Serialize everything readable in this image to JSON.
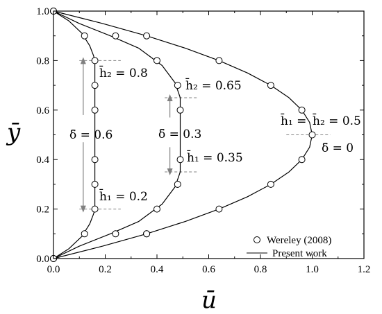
{
  "chart_data": {
    "type": "line",
    "xlabel": "ū",
    "ylabel": "ȳ",
    "xlim": [
      0.0,
      1.2
    ],
    "ylim": [
      0.0,
      1.0
    ],
    "x_ticks": [
      "0.0",
      "0.2",
      "0.4",
      "0.6",
      "0.8",
      "1.0",
      "1.2"
    ],
    "y_ticks": [
      "0.0",
      "0.2",
      "0.4",
      "0.6",
      "0.8",
      "1.0"
    ],
    "grid": false,
    "legend_position": "bottom-right",
    "legend": {
      "markers_label": "Wereley (2008)",
      "line_label": "Present work"
    },
    "series": [
      {
        "h1": 0.2,
        "h2": 0.8,
        "delta": 0.6,
        "line_x": [
          0.0,
          0.06,
          0.11,
          0.14,
          0.155,
          0.16,
          0.16,
          0.155,
          0.14,
          0.11,
          0.06,
          0.0
        ],
        "line_y": [
          0.0,
          0.04,
          0.09,
          0.14,
          0.18,
          0.2,
          0.8,
          0.82,
          0.86,
          0.91,
          0.96,
          1.0
        ],
        "markers_x": [
          0.0,
          0.12,
          0.16,
          0.16,
          0.16,
          0.16,
          0.16,
          0.16,
          0.12,
          0.0
        ],
        "markers_y": [
          0.0,
          0.1,
          0.2,
          0.3,
          0.4,
          0.6,
          0.7,
          0.8,
          0.9,
          1.0
        ]
      },
      {
        "h1": 0.35,
        "h2": 0.65,
        "delta": 0.3,
        "line_x": [
          0.0,
          0.1,
          0.22,
          0.33,
          0.42,
          0.47,
          0.49,
          0.49,
          0.47,
          0.42,
          0.33,
          0.22,
          0.1,
          0.0
        ],
        "line_y": [
          0.0,
          0.05,
          0.1,
          0.15,
          0.22,
          0.29,
          0.35,
          0.65,
          0.71,
          0.78,
          0.85,
          0.9,
          0.95,
          1.0
        ],
        "markers_x": [
          0.0,
          0.24,
          0.36,
          0.4,
          0.48,
          0.49,
          0.49,
          0.48,
          0.4,
          0.24,
          0.0
        ],
        "markers_y": [
          0.0,
          0.1,
          0.1,
          0.2,
          0.3,
          0.4,
          0.6,
          0.7,
          0.8,
          0.9,
          1.0
        ]
      },
      {
        "h1": 0.5,
        "h2": 0.5,
        "delta": 0,
        "line_x": [
          0.0,
          0.19,
          0.36,
          0.51,
          0.64,
          0.75,
          0.84,
          0.91,
          0.96,
          0.99,
          1.0,
          0.99,
          0.96,
          0.91,
          0.84,
          0.75,
          0.64,
          0.51,
          0.36,
          0.19,
          0.0
        ],
        "line_y": [
          0.0,
          0.05,
          0.1,
          0.15,
          0.2,
          0.25,
          0.3,
          0.35,
          0.4,
          0.45,
          0.5,
          0.55,
          0.6,
          0.65,
          0.7,
          0.75,
          0.8,
          0.85,
          0.9,
          0.95,
          1.0
        ],
        "markers_x": [
          0.0,
          0.36,
          0.64,
          0.84,
          0.96,
          1.0,
          0.96,
          0.84,
          0.64,
          0.36,
          0.0
        ],
        "markers_y": [
          0.0,
          0.1,
          0.2,
          0.3,
          0.4,
          0.5,
          0.6,
          0.7,
          0.8,
          0.9,
          1.0
        ]
      }
    ],
    "annotations": {
      "a_h2_08": "h̄₂ = 0.8",
      "a_delta_06": "δ̄ = 0.6",
      "a_h1_02": "h̄₁ = 0.2",
      "a_h2_065": "h̄₂ = 0.65",
      "a_delta_03": "δ̄ = 0.3",
      "a_h1_035": "h̄₁ = 0.35",
      "a_h1_05": "h̄₁ =",
      "a_h2_05": "h̄₂ = 0.5",
      "a_delta_0": "δ̄ = 0"
    },
    "colors": {
      "line": "#000000",
      "marker_edge": "#000000",
      "marker_fill": "#ffffff",
      "guide": "#808080"
    }
  }
}
